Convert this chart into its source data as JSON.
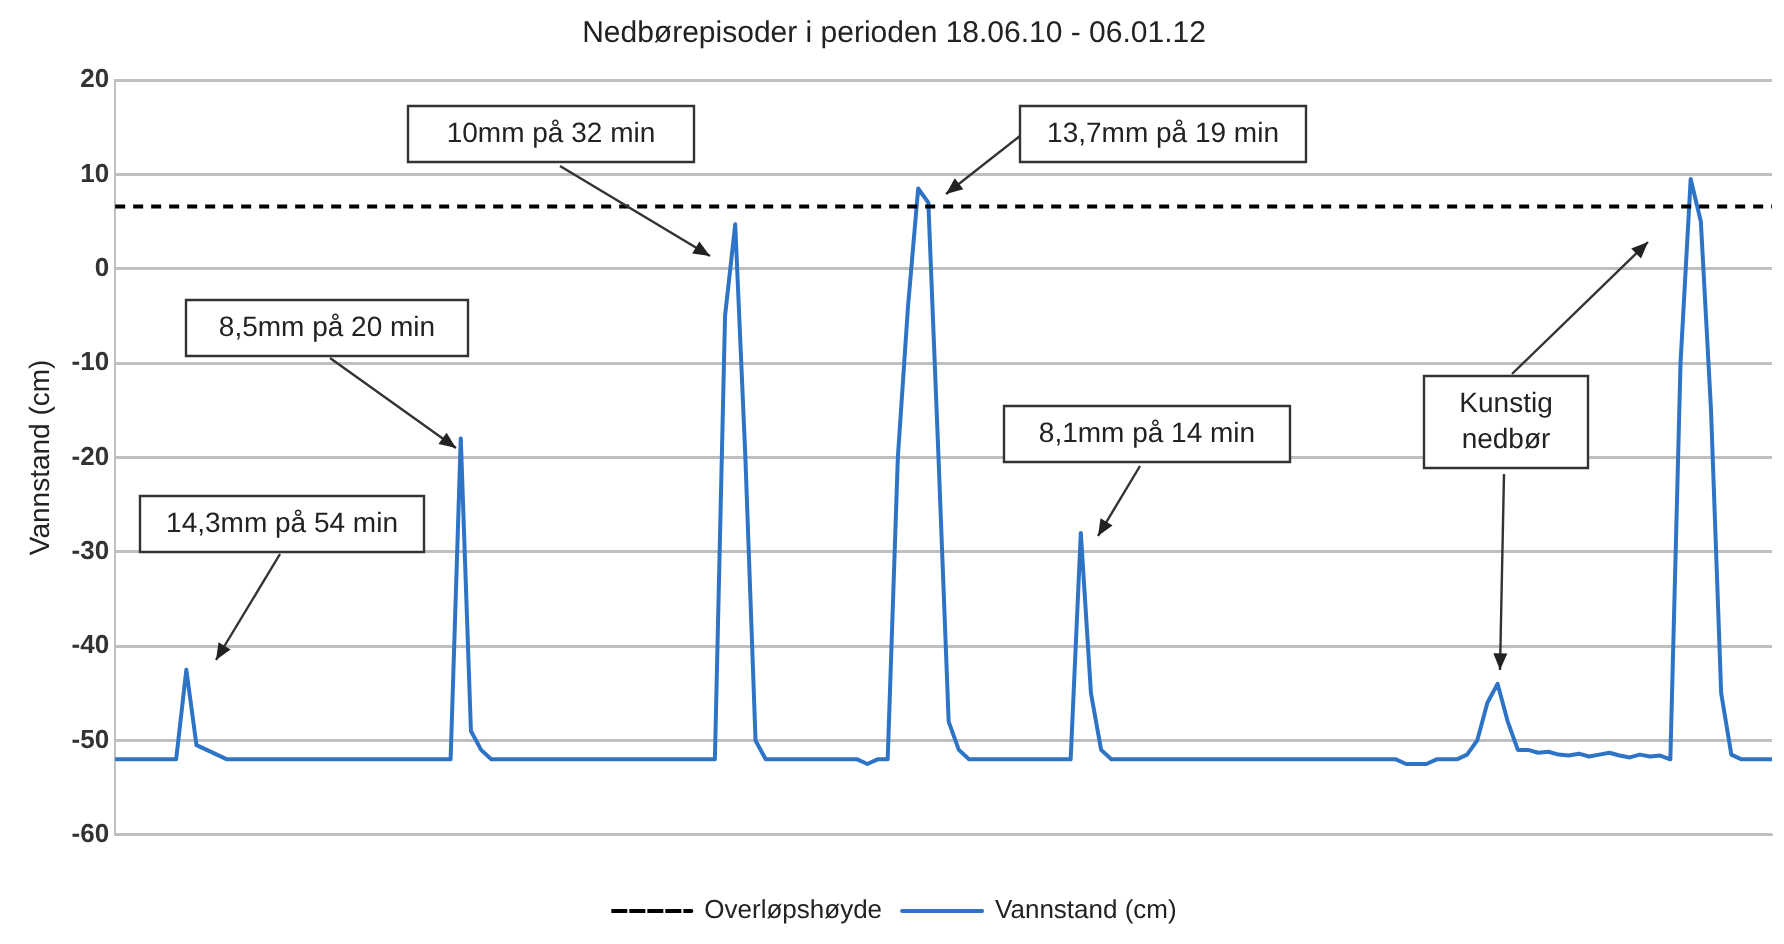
{
  "chart_data": {
    "type": "line",
    "title": "Nedbørepisoder i perioden 18.06.10 - 06.01.12",
    "ylabel": "Vannstand (cm)",
    "categories": [
      null,
      null,
      null,
      null,
      null,
      null,
      null,
      null,
      null,
      null,
      null,
      null,
      null,
      null,
      null,
      null,
      null,
      null,
      null,
      null,
      null,
      null,
      null,
      null,
      null,
      null,
      null,
      null,
      null,
      null,
      null,
      null,
      null,
      null,
      null,
      null,
      null,
      null,
      null,
      null,
      null,
      null,
      null,
      null,
      null,
      null,
      null,
      null,
      null,
      null,
      null,
      null,
      null,
      null,
      null,
      null,
      null,
      null,
      null,
      null,
      null,
      null,
      null,
      null,
      null,
      null,
      null,
      null,
      null,
      null,
      null,
      null,
      null,
      null,
      null,
      null,
      null,
      null,
      null,
      null,
      null,
      null,
      null,
      null,
      null,
      null,
      null,
      null,
      null,
      null,
      null,
      null,
      null,
      null,
      null,
      null,
      null,
      null,
      null,
      null,
      null,
      null,
      null,
      null,
      null,
      null,
      null,
      null,
      null,
      null,
      null,
      null,
      null,
      null,
      null,
      null,
      null,
      null,
      null,
      null,
      null,
      null,
      null,
      null,
      null,
      null,
      null,
      null,
      null,
      null,
      null,
      null,
      null,
      null,
      null,
      null,
      null,
      null,
      null,
      null,
      null,
      null,
      null,
      null,
      null,
      null,
      null,
      null,
      null,
      null,
      null,
      null,
      null,
      null,
      null,
      null,
      null,
      null,
      null,
      null,
      null,
      null,
      null,
      null
    ],
    "series": [
      {
        "name": "Vannstand (cm)",
        "color": "#2e74c6",
        "values": [
          -52,
          -52,
          -52,
          -52,
          -52,
          -52,
          -52,
          -42.5,
          -50.5,
          -51,
          -51.5,
          -52,
          -52,
          -52,
          -52,
          -52,
          -52,
          -52,
          -52,
          -52,
          -52,
          -52,
          -52,
          -52,
          -52,
          -52,
          -52,
          -52,
          -52,
          -52,
          -52,
          -52,
          -52,
          -52,
          -18,
          -49,
          -51,
          -52,
          -52,
          -52,
          -52,
          -52,
          -52,
          -52,
          -52,
          -52,
          -52,
          -52,
          -52,
          -52,
          -52,
          -52,
          -52,
          -52,
          -52,
          -52,
          -52,
          -52,
          -52,
          -52,
          -5,
          4.7,
          -20,
          -50,
          -52,
          -52,
          -52,
          -52,
          -52,
          -52,
          -52,
          -52,
          -52,
          -52,
          -52.5,
          -52,
          -52,
          -20,
          -4,
          8.5,
          7,
          -20,
          -48,
          -51,
          -52,
          -52,
          -52,
          -52,
          -52,
          -52,
          -52,
          -52,
          -52,
          -52,
          -52,
          -28,
          -45,
          -51,
          -52,
          -52,
          -52,
          -52,
          -52,
          -52,
          -52,
          -52,
          -52,
          -52,
          -52,
          -52,
          -52,
          -52,
          -52,
          -52,
          -52,
          -52,
          -52,
          -52,
          -52,
          -52,
          -52,
          -52,
          -52,
          -52,
          -52,
          -52,
          -52,
          -52.5,
          -52.5,
          -52.5,
          -52,
          -52,
          -52,
          -51.5,
          -50,
          -46,
          -44,
          -48,
          -51,
          -51,
          -51.3,
          -51.2,
          -51.5,
          -51.6,
          -51.4,
          -51.7,
          -51.5,
          -51.3,
          -51.6,
          -51.8,
          -51.5,
          -51.7,
          -51.6,
          -52,
          -10,
          9.5,
          5,
          -15,
          -45,
          -51.5,
          -52,
          -52,
          -52,
          -52
        ]
      },
      {
        "name": "Overløpshøyde",
        "color": "#000000",
        "line_style": "dashed",
        "values": [
          6.6,
          6.6,
          6.6,
          6.6,
          6.6,
          6.6,
          6.6,
          6.6,
          6.6,
          6.6,
          6.6,
          6.6,
          6.6,
          6.6,
          6.6,
          6.6,
          6.6,
          6.6,
          6.6,
          6.6,
          6.6,
          6.6,
          6.6,
          6.6,
          6.6,
          6.6,
          6.6,
          6.6,
          6.6,
          6.6,
          6.6,
          6.6,
          6.6,
          6.6,
          6.6,
          6.6,
          6.6,
          6.6,
          6.6,
          6.6,
          6.6,
          6.6,
          6.6,
          6.6,
          6.6,
          6.6,
          6.6,
          6.6,
          6.6,
          6.6,
          6.6,
          6.6,
          6.6,
          6.6,
          6.6,
          6.6,
          6.6,
          6.6,
          6.6,
          6.6,
          6.6,
          6.6,
          6.6,
          6.6,
          6.6,
          6.6,
          6.6,
          6.6,
          6.6,
          6.6,
          6.6,
          6.6,
          6.6,
          6.6,
          6.6,
          6.6,
          6.6,
          6.6,
          6.6,
          6.6,
          6.6,
          6.6,
          6.6,
          6.6,
          6.6,
          6.6,
          6.6,
          6.6,
          6.6,
          6.6,
          6.6,
          6.6,
          6.6,
          6.6,
          6.6,
          6.6,
          6.6,
          6.6,
          6.6,
          6.6,
          6.6,
          6.6,
          6.6,
          6.6,
          6.6,
          6.6,
          6.6,
          6.6,
          6.6,
          6.6,
          6.6,
          6.6,
          6.6,
          6.6,
          6.6,
          6.6,
          6.6,
          6.6,
          6.6,
          6.6,
          6.6,
          6.6,
          6.6,
          6.6,
          6.6,
          6.6,
          6.6,
          6.6,
          6.6,
          6.6,
          6.6,
          6.6,
          6.6,
          6.6,
          6.6,
          6.6,
          6.6,
          6.6,
          6.6,
          6.6,
          6.6,
          6.6,
          6.6,
          6.6,
          6.6,
          6.6,
          6.6,
          6.6,
          6.6,
          6.6,
          6.6,
          6.6,
          6.6,
          6.6,
          6.6,
          6.6,
          6.6,
          6.6,
          6.6,
          6.6,
          6.6,
          6.6,
          6.6,
          6.6
        ]
      }
    ],
    "annotations": [
      "14,3mm på 54 min",
      "8,5mm på 20 min",
      "10mm på 32 min",
      "13,7mm på 19 min",
      "8,1mm på 14 min",
      "Kunstig nedbør"
    ],
    "ylim": [
      -60,
      20
    ],
    "yticks": [
      -60,
      -50,
      -40,
      -30,
      -20,
      -10,
      0,
      10,
      20
    ],
    "grid": "y",
    "legend": "bottom",
    "marker": "none",
    "line_style": "solid"
  }
}
